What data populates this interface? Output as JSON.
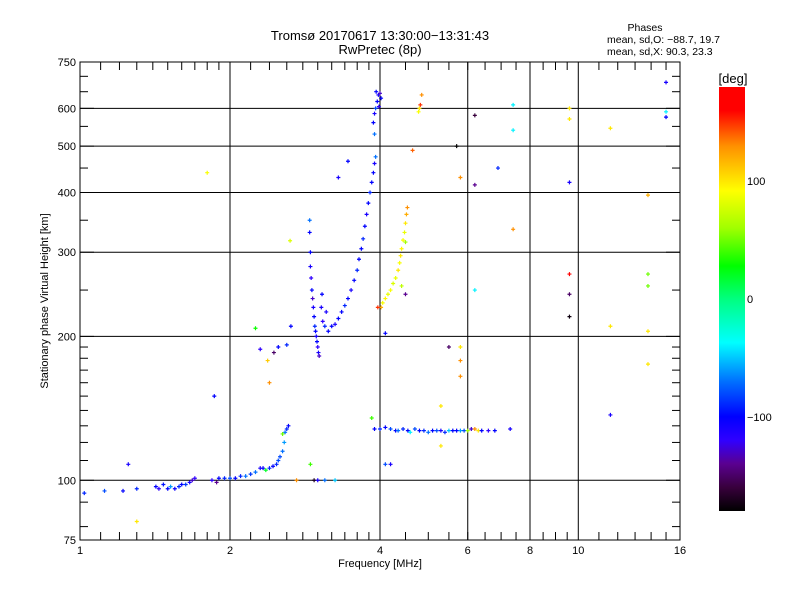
{
  "chart_data": {
    "type": "scatter",
    "title": "Tromsø 20170617 13:30:00−13:31:43",
    "subtitle": "RwPretec (8p)",
    "xlabel": "Frequency [MHz]",
    "ylabel": "Stationary phase Virtual Height [km]",
    "xscale": "log",
    "yscale": "log",
    "xlim": [
      1,
      16
    ],
    "ylim": [
      75,
      750
    ],
    "xticks": [
      1,
      2,
      4,
      6,
      8,
      10,
      16
    ],
    "xtick_labels": [
      "1",
      "2",
      "4",
      "6",
      "8",
      "10",
      "16"
    ],
    "xgrid": [
      2,
      4,
      6,
      8,
      10
    ],
    "yticks": [
      75,
      100,
      200,
      300,
      400,
      500,
      600,
      750
    ],
    "ytick_labels": [
      "75",
      "100",
      "200",
      "300",
      "400",
      "500",
      "600",
      "750"
    ],
    "ygrid": [
      100,
      200,
      300,
      400,
      500,
      600
    ],
    "grid": true,
    "stats": {
      "heading": "Phases",
      "line_o": "mean, sd,O: −88.7, 19.7",
      "line_x": "mean, sd,X:  90.3, 23.3"
    },
    "colorbar": {
      "label": "[deg]",
      "range": [
        -180,
        180
      ],
      "ticks": [
        100,
        0,
        -100
      ],
      "tick_labels": [
        "100",
        "0",
        "−100"
      ],
      "colormap": [
        [
          -180,
          "#000000"
        ],
        [
          -160,
          "#38003c"
        ],
        [
          -140,
          "#5a0090"
        ],
        [
          -120,
          "#3000ff"
        ],
        [
          -100,
          "#0000ff"
        ],
        [
          -70,
          "#0070ff"
        ],
        [
          -37,
          "#00ffff"
        ],
        [
          0,
          "#00ff80"
        ],
        [
          28,
          "#00ff00"
        ],
        [
          60,
          "#a0ff00"
        ],
        [
          92,
          "#ffff00"
        ],
        [
          130,
          "#ff9000"
        ],
        [
          160,
          "#ff0000"
        ],
        [
          180,
          "#ff0000"
        ]
      ]
    },
    "points_columns": [
      "frequency_MHz",
      "virtual_height_km",
      "phase_deg"
    ],
    "points": [
      [
        1.02,
        94,
        -90
      ],
      [
        1.12,
        95,
        -80
      ],
      [
        1.22,
        95,
        -100
      ],
      [
        1.3,
        96,
        -90
      ],
      [
        1.25,
        108,
        -110
      ],
      [
        1.42,
        97,
        -100
      ],
      [
        1.44,
        96,
        -120
      ],
      [
        1.47,
        98,
        -95
      ],
      [
        1.5,
        96,
        -100
      ],
      [
        1.52,
        97,
        -60
      ],
      [
        1.55,
        96,
        -105
      ],
      [
        1.58,
        97,
        -90
      ],
      [
        1.6,
        98,
        -100
      ],
      [
        1.63,
        98,
        -85
      ],
      [
        1.66,
        99,
        -110
      ],
      [
        1.68,
        100,
        -130
      ],
      [
        1.7,
        101,
        -120
      ],
      [
        1.84,
        100,
        -120
      ],
      [
        1.88,
        99,
        -140
      ],
      [
        1.9,
        101,
        -100
      ],
      [
        1.95,
        101,
        -90
      ],
      [
        2.0,
        101,
        -80
      ],
      [
        2.05,
        101,
        -100
      ],
      [
        2.1,
        102,
        -90
      ],
      [
        2.15,
        102,
        -70
      ],
      [
        2.2,
        103,
        -85
      ],
      [
        2.25,
        104,
        -70
      ],
      [
        2.3,
        106,
        -110
      ],
      [
        2.33,
        106,
        -100
      ],
      [
        2.36,
        105,
        20
      ],
      [
        2.4,
        106,
        -90
      ],
      [
        2.44,
        107,
        -100
      ],
      [
        2.48,
        108,
        -90
      ],
      [
        2.5,
        110,
        -80
      ],
      [
        2.52,
        112,
        -80
      ],
      [
        2.55,
        115,
        -70
      ],
      [
        2.57,
        120,
        -60
      ],
      [
        2.58,
        126,
        -70
      ],
      [
        2.6,
        128,
        -90
      ],
      [
        2.62,
        130,
        -100
      ],
      [
        2.55,
        125,
        50
      ],
      [
        2.9,
        108,
        40
      ],
      [
        2.95,
        100,
        -170
      ],
      [
        3.0,
        100,
        -110
      ],
      [
        3.1,
        100,
        -70
      ],
      [
        3.25,
        100,
        -50
      ],
      [
        2.72,
        100,
        130
      ],
      [
        1.3,
        82,
        100
      ],
      [
        1.8,
        440,
        90
      ],
      [
        1.86,
        150,
        -100
      ],
      [
        2.25,
        208,
        30
      ],
      [
        2.3,
        188,
        -120
      ],
      [
        2.38,
        178,
        110
      ],
      [
        2.45,
        185,
        -150
      ],
      [
        2.5,
        190,
        -100
      ],
      [
        2.6,
        192,
        -90
      ],
      [
        2.65,
        210,
        -100
      ],
      [
        2.4,
        160,
        130
      ],
      [
        2.64,
        317,
        80
      ],
      [
        2.89,
        350,
        -70
      ],
      [
        2.89,
        330,
        -100
      ],
      [
        2.9,
        300,
        -100
      ],
      [
        2.9,
        280,
        -110
      ],
      [
        2.91,
        265,
        -120
      ],
      [
        2.92,
        250,
        -100
      ],
      [
        2.93,
        240,
        -130
      ],
      [
        2.94,
        230,
        -110
      ],
      [
        2.95,
        220,
        -100
      ],
      [
        2.96,
        210,
        -90
      ],
      [
        2.97,
        205,
        -100
      ],
      [
        2.98,
        200,
        -110
      ],
      [
        2.99,
        195,
        -100
      ],
      [
        3.0,
        190,
        -120
      ],
      [
        3.01,
        185,
        -110
      ],
      [
        3.02,
        182,
        -130
      ],
      [
        3.05,
        230,
        -110
      ],
      [
        3.06,
        245,
        -100
      ],
      [
        3.07,
        215,
        -120
      ],
      [
        3.1,
        210,
        -90
      ],
      [
        3.12,
        225,
        -110
      ],
      [
        3.15,
        205,
        -100
      ],
      [
        3.2,
        210,
        -100
      ],
      [
        3.25,
        212,
        -110
      ],
      [
        3.3,
        218,
        -100
      ],
      [
        3.35,
        225,
        -100
      ],
      [
        3.4,
        232,
        -90
      ],
      [
        3.45,
        240,
        -100
      ],
      [
        3.5,
        250,
        -110
      ],
      [
        3.55,
        262,
        -100
      ],
      [
        3.6,
        275,
        -90
      ],
      [
        3.63,
        290,
        -100
      ],
      [
        3.67,
        305,
        -100
      ],
      [
        3.7,
        320,
        -90
      ],
      [
        3.73,
        340,
        -100
      ],
      [
        3.76,
        360,
        -110
      ],
      [
        3.79,
        380,
        -100
      ],
      [
        3.82,
        400,
        -90
      ],
      [
        3.85,
        420,
        -100
      ],
      [
        3.88,
        440,
        -100
      ],
      [
        3.9,
        460,
        -110
      ],
      [
        3.92,
        475,
        -70
      ],
      [
        3.3,
        430,
        -110
      ],
      [
        3.45,
        465,
        -100
      ],
      [
        3.9,
        530,
        -70
      ],
      [
        3.88,
        560,
        -100
      ],
      [
        3.9,
        585,
        -110
      ],
      [
        3.92,
        600,
        -80
      ],
      [
        3.95,
        620,
        -100
      ],
      [
        3.97,
        640,
        -110
      ],
      [
        4.0,
        645,
        -130
      ],
      [
        4.02,
        630,
        -100
      ],
      [
        3.98,
        605,
        -120
      ],
      [
        3.93,
        650,
        -100
      ],
      [
        4.02,
        230,
        120
      ],
      [
        4.05,
        235,
        90
      ],
      [
        4.1,
        240,
        95
      ],
      [
        4.15,
        245,
        85
      ],
      [
        4.2,
        250,
        90
      ],
      [
        4.25,
        258,
        80
      ],
      [
        4.3,
        265,
        85
      ],
      [
        4.35,
        275,
        100
      ],
      [
        4.38,
        285,
        90
      ],
      [
        4.4,
        295,
        100
      ],
      [
        4.42,
        305,
        95
      ],
      [
        4.45,
        318,
        90
      ],
      [
        4.48,
        330,
        85
      ],
      [
        4.5,
        345,
        100
      ],
      [
        4.52,
        360,
        120
      ],
      [
        4.54,
        372,
        130
      ],
      [
        4.5,
        315,
        60
      ],
      [
        4.42,
        255,
        70
      ],
      [
        4.65,
        490,
        140
      ],
      [
        4.78,
        590,
        90
      ],
      [
        4.82,
        610,
        150
      ],
      [
        4.85,
        640,
        130
      ],
      [
        4.8,
        600,
        100
      ],
      [
        3.96,
        230,
        150
      ],
      [
        4.5,
        245,
        -140
      ],
      [
        4.1,
        203,
        -100
      ],
      [
        3.9,
        128,
        -100
      ],
      [
        4.0,
        128,
        -90
      ],
      [
        4.1,
        129,
        -100
      ],
      [
        4.2,
        128,
        -80
      ],
      [
        4.3,
        127,
        -100
      ],
      [
        4.35,
        127,
        -70
      ],
      [
        4.45,
        128,
        -90
      ],
      [
        4.55,
        127,
        -100
      ],
      [
        4.6,
        126,
        -40
      ],
      [
        4.7,
        128,
        -80
      ],
      [
        4.8,
        127,
        -100
      ],
      [
        4.9,
        127,
        -90
      ],
      [
        5.0,
        126,
        -70
      ],
      [
        5.1,
        127,
        -100
      ],
      [
        5.2,
        127,
        -80
      ],
      [
        5.3,
        127,
        -110
      ],
      [
        5.4,
        126,
        -90
      ],
      [
        5.5,
        127,
        -50
      ],
      [
        5.6,
        127,
        -100
      ],
      [
        5.7,
        127,
        -100
      ],
      [
        5.8,
        127,
        -60
      ],
      [
        5.9,
        127,
        -80
      ],
      [
        6.0,
        127,
        60
      ],
      [
        6.1,
        128,
        -130
      ],
      [
        6.2,
        128,
        130
      ],
      [
        6.3,
        127,
        100
      ],
      [
        6.4,
        127,
        -100
      ],
      [
        6.6,
        127,
        -120
      ],
      [
        6.8,
        127,
        -100
      ],
      [
        7.3,
        128,
        -110
      ],
      [
        3.85,
        135,
        40
      ],
      [
        4.1,
        108,
        -80
      ],
      [
        4.2,
        108,
        -110
      ],
      [
        5.3,
        118,
        100
      ],
      [
        5.3,
        143,
        100
      ],
      [
        6.2,
        580,
        -160
      ],
      [
        7.4,
        610,
        -40
      ],
      [
        7.4,
        540,
        -40
      ],
      [
        9.6,
        600,
        100
      ],
      [
        9.6,
        570,
        100
      ],
      [
        9.6,
        420,
        -110
      ],
      [
        9.6,
        270,
        170
      ],
      [
        9.6,
        245,
        -150
      ],
      [
        9.6,
        220,
        -175
      ],
      [
        11.6,
        545,
        100
      ],
      [
        11.6,
        210,
        100
      ],
      [
        11.6,
        137,
        -110
      ],
      [
        13.8,
        395,
        120
      ],
      [
        13.8,
        270,
        50
      ],
      [
        13.8,
        255,
        50
      ],
      [
        13.8,
        205,
        100
      ],
      [
        13.8,
        175,
        100
      ],
      [
        15,
        680,
        -110
      ],
      [
        15,
        590,
        -40
      ],
      [
        15,
        575,
        -100
      ],
      [
        5.8,
        190,
        100
      ],
      [
        5.8,
        165,
        130
      ],
      [
        5.8,
        178,
        130
      ],
      [
        5.8,
        430,
        130
      ],
      [
        6.2,
        415,
        -140
      ],
      [
        6.2,
        250,
        -40
      ],
      [
        6.9,
        450,
        -90
      ],
      [
        7.4,
        335,
        130
      ],
      [
        5.7,
        500,
        -180
      ],
      [
        5.5,
        190,
        -150
      ]
    ]
  }
}
